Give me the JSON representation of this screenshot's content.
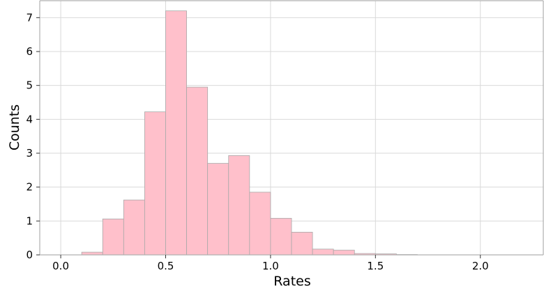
{
  "chart_data": {
    "type": "bar",
    "subtype": "histogram",
    "title": "",
    "xlabel": "Rates",
    "ylabel": "Counts",
    "xlim": [
      -0.1,
      2.3
    ],
    "ylim": [
      0,
      7.5
    ],
    "xticks": [
      0.0,
      0.5,
      1.0,
      1.5,
      2.0
    ],
    "xtick_labels": [
      "0.0",
      "0.5",
      "1.0",
      "1.5",
      "2.0"
    ],
    "yticks": [
      0,
      1,
      2,
      3,
      4,
      5,
      6,
      7
    ],
    "ytick_labels": [
      "0",
      "1",
      "2",
      "3",
      "4",
      "5",
      "6",
      "7"
    ],
    "grid": true,
    "bin_edges": [
      0.0,
      0.1,
      0.2,
      0.3,
      0.4,
      0.5,
      0.6,
      0.7,
      0.8,
      0.9,
      1.0,
      1.1,
      1.2,
      1.3,
      1.4,
      1.5,
      1.6,
      1.7,
      1.8,
      1.9,
      2.0,
      2.1,
      2.2
    ],
    "values": [
      0.0,
      0.08,
      1.06,
      1.62,
      4.22,
      7.2,
      4.95,
      2.7,
      2.93,
      1.85,
      1.08,
      0.67,
      0.17,
      0.14,
      0.04,
      0.03,
      0.01,
      0.0,
      0.0,
      0.0,
      0.0,
      0.0
    ],
    "colors": {
      "bar_fill": "#ffc0cb",
      "bar_edge": "#a9a9a9",
      "grid": "#d9d9d9",
      "axes": "#b0b0b0",
      "text": "#000000"
    }
  }
}
